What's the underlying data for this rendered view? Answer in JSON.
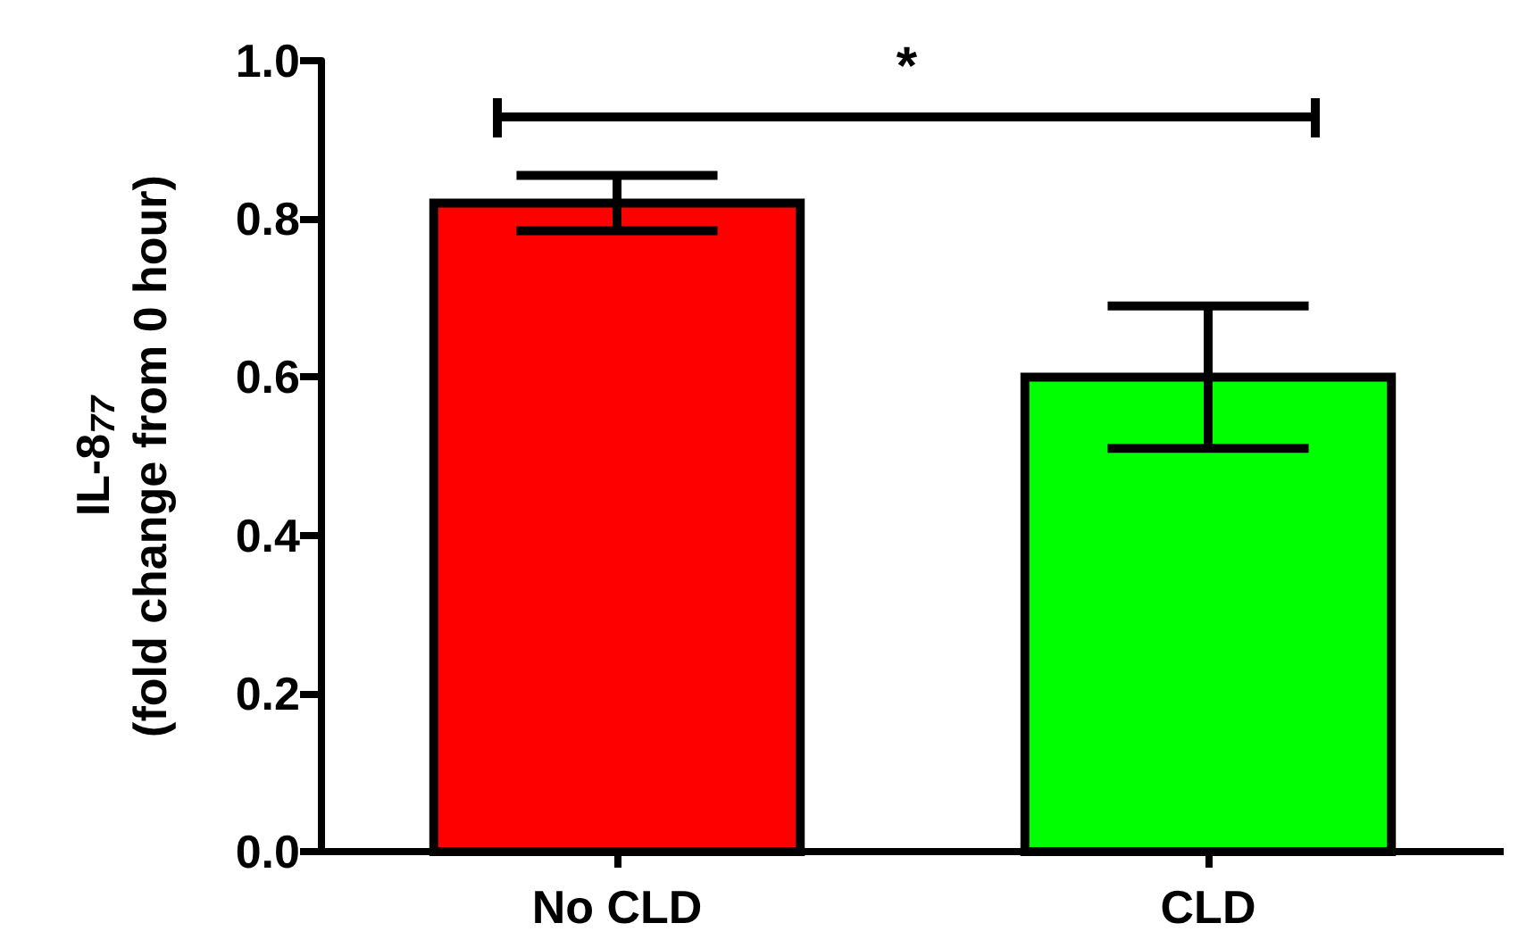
{
  "chart_data": {
    "type": "bar",
    "ylabel": "IL-8$_{77}$\n(fold change from 0 hour)",
    "categories": [
      "No CLD",
      "CLD"
    ],
    "values": [
      0.82,
      0.6
    ],
    "colors": [
      "#ff0000",
      "#00ff00"
    ],
    "errors": [
      0.035,
      0.09
    ],
    "ylim": [
      0,
      1.0
    ],
    "yticks": [
      {
        "value": 0,
        "label": "0.0"
      },
      {
        "value": 0.2,
        "label": "0.2"
      },
      {
        "value": 0.4,
        "label": "0.4"
      },
      {
        "value": 0.6,
        "label": "0.6"
      },
      {
        "value": 0.8,
        "label": "0.8"
      },
      {
        "value": 1.0,
        "label": "1.0"
      }
    ],
    "grid": false,
    "annotations": [
      "*"
    ]
  }
}
